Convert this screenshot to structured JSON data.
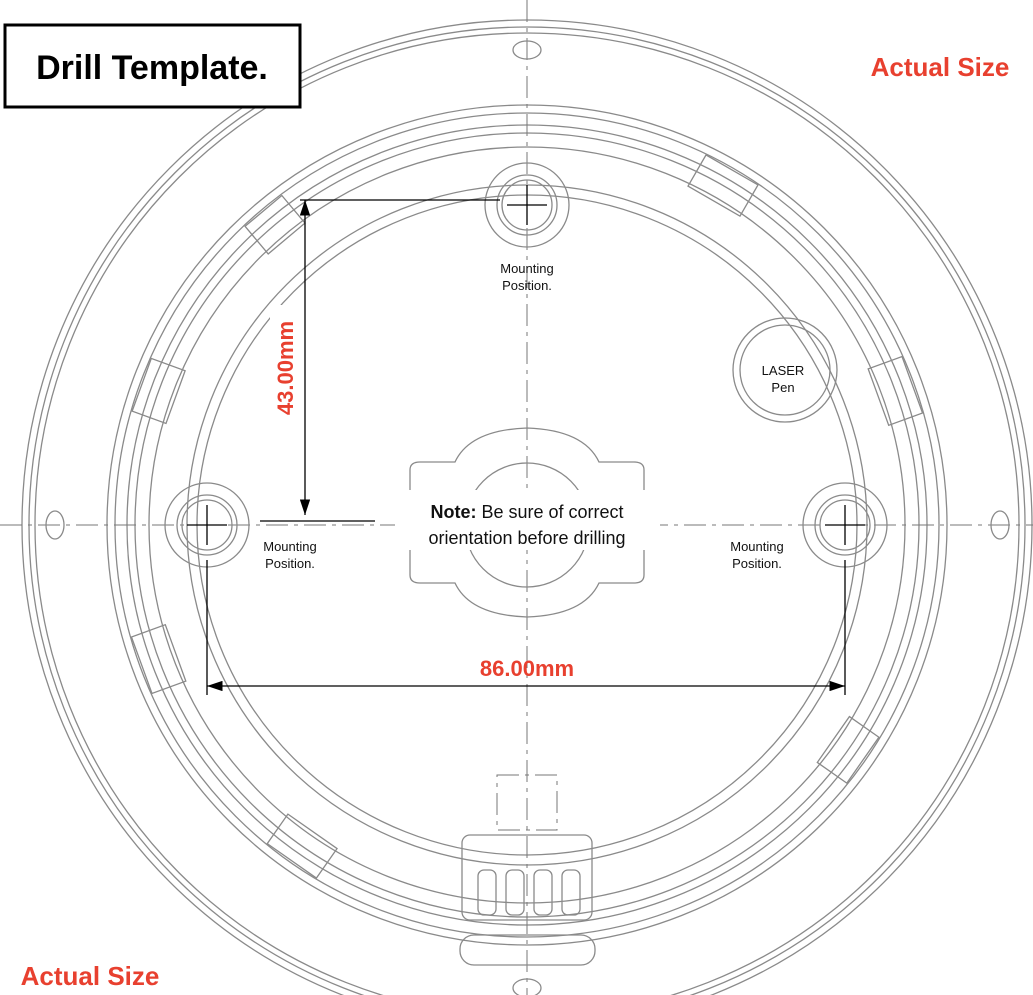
{
  "title": "Drill Template.",
  "scale_labels": [
    "Actual Size",
    "Actual Size"
  ],
  "dimensions": {
    "vertical": "43.00mm",
    "horizontal": "86.00mm"
  },
  "mounting_positions": [
    [
      "Mounting",
      "Position."
    ],
    [
      "Mounting",
      "Position."
    ],
    [
      "Mounting",
      "Position."
    ]
  ],
  "laser": [
    "LASER",
    "Pen"
  ],
  "note": {
    "emphasis": "Note:",
    "lines": [
      "Be sure of correct",
      "orientation before drilling"
    ]
  }
}
